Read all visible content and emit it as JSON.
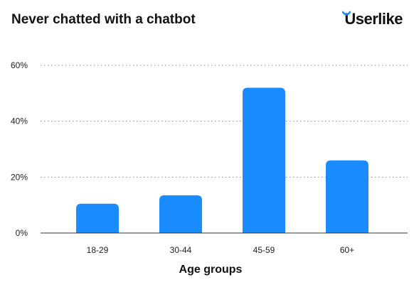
{
  "brand": {
    "name": "Userlike",
    "accent_color": "#1a8cff"
  },
  "chart_data": {
    "type": "bar",
    "title": "Never chatted with a chatbot",
    "xlabel": "Age groups",
    "ylabel": "",
    "categories": [
      "18-29",
      "30-44",
      "45-59",
      "60+"
    ],
    "values": [
      10.5,
      13.5,
      52,
      26
    ],
    "ylim": [
      0,
      60
    ],
    "yticks": [
      0,
      20,
      40,
      60
    ],
    "ytick_labels": [
      "0%",
      "20%",
      "40%",
      "60%"
    ],
    "grid": true,
    "bar_color": "#1a8cff",
    "legend": "none"
  }
}
